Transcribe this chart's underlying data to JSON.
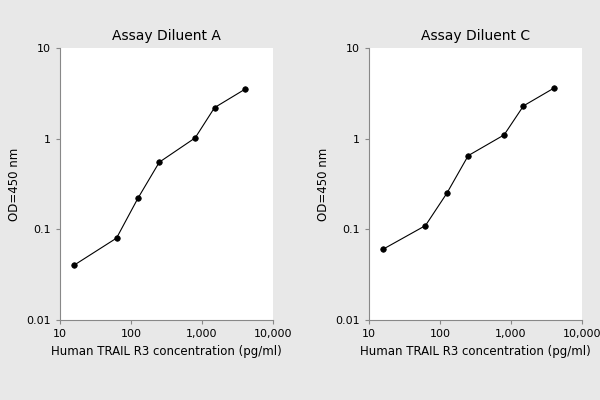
{
  "panel_A_title": "Assay Diluent A",
  "panel_C_title": "Assay Diluent C",
  "xlabel": "Human TRAIL R3 concentration (pg/ml)",
  "ylabel": "OD=450 nm",
  "panel_A_x": [
    15.6,
    62.5,
    125,
    250,
    800,
    1500,
    4000
  ],
  "panel_A_y": [
    0.04,
    0.08,
    0.22,
    0.55,
    1.02,
    2.2,
    3.5
  ],
  "panel_C_x": [
    15.6,
    62.5,
    125,
    250,
    800,
    1500,
    4000
  ],
  "panel_C_y": [
    0.06,
    0.11,
    0.25,
    0.65,
    1.1,
    2.3,
    3.6
  ],
  "xlim": [
    10,
    8000
  ],
  "ylim": [
    0.01,
    10
  ],
  "x_ticks": [
    10,
    100,
    1000,
    10000
  ],
  "x_tick_labels": [
    "10",
    "100",
    "1,000",
    "10,000"
  ],
  "y_ticks": [
    0.01,
    0.1,
    1,
    10
  ],
  "y_tick_labels": [
    "0.01",
    "0.1",
    "1",
    "10"
  ],
  "line_color": "#000000",
  "marker": "o",
  "marker_size": 4,
  "line_style": "-",
  "line_width": 0.8,
  "background_color": "#ffffff",
  "fig_background": "#e8e8e8",
  "title_fontsize": 10,
  "label_fontsize": 8.5,
  "tick_fontsize": 8
}
